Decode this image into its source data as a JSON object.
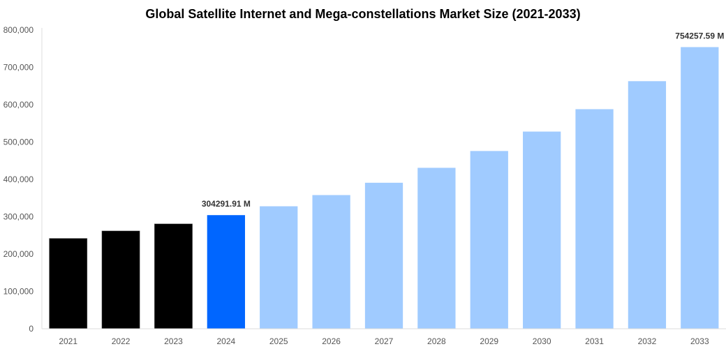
{
  "chart_data": {
    "type": "bar",
    "title": "Global Satellite Internet and Mega-constellations Market Size (2021-2033)",
    "xlabel": "",
    "ylabel": "",
    "ylim": [
      0,
      800000
    ],
    "yticks": [
      0,
      100000,
      200000,
      300000,
      400000,
      500000,
      600000,
      700000,
      800000
    ],
    "ytick_labels": [
      "0",
      "100,000",
      "200,000",
      "300,000",
      "400,000",
      "500,000",
      "600,000",
      "700,000",
      "800,000"
    ],
    "grid": false,
    "categories": [
      "2021",
      "2022",
      "2023",
      "2024",
      "2025",
      "2026",
      "2027",
      "2028",
      "2029",
      "2030",
      "2031",
      "2032",
      "2033"
    ],
    "values": [
      242000,
      262000,
      281000,
      304291.91,
      328000,
      358000,
      391000,
      431000,
      476000,
      528000,
      588000,
      663000,
      754257.59
    ],
    "colors": [
      "#000000",
      "#000000",
      "#000000",
      "#0066ff",
      "#a0cbff",
      "#a0cbff",
      "#a0cbff",
      "#a0cbff",
      "#a0cbff",
      "#a0cbff",
      "#a0cbff",
      "#a0cbff",
      "#a0cbff"
    ],
    "data_labels": [
      {
        "category": "2024",
        "text": "304291.91 M"
      },
      {
        "category": "2033",
        "text": "754257.59 M"
      }
    ]
  }
}
